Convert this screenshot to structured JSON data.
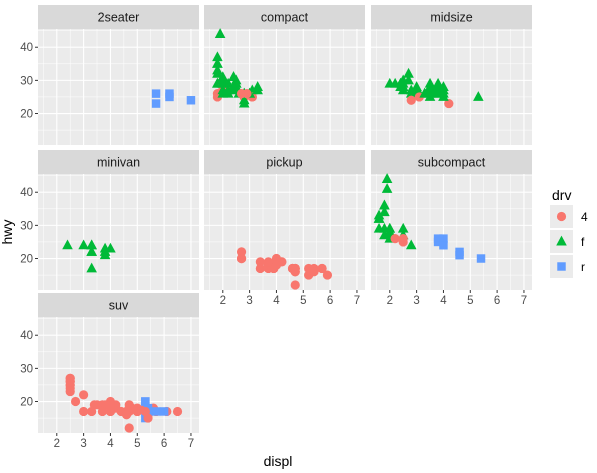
{
  "chart_data": {
    "type": "scatter",
    "facet_var": "class",
    "facets": [
      "2seater",
      "compact",
      "midsize",
      "minivan",
      "pickup",
      "subcompact",
      "suv"
    ],
    "xlabel": "displ",
    "ylabel": "hwy",
    "xlim": [
      1.3,
      7.3
    ],
    "ylim": [
      10.5,
      45.5
    ],
    "x_ticks": [
      2,
      3,
      4,
      5,
      6,
      7
    ],
    "y_ticks": [
      20,
      30,
      40
    ],
    "grid": true,
    "legend": {
      "title": "drv",
      "position": "right",
      "entries": [
        {
          "key": "4",
          "label": "4",
          "shape": "circle",
          "color": "#F8766D"
        },
        {
          "key": "f",
          "label": "f",
          "shape": "triangle",
          "color": "#00BA38"
        },
        {
          "key": "r",
          "label": "r",
          "shape": "square",
          "color": "#619CFF"
        }
      ]
    },
    "points": {
      "2seater": [
        {
          "x": 5.7,
          "y": 26,
          "drv": "r"
        },
        {
          "x": 5.7,
          "y": 23,
          "drv": "r"
        },
        {
          "x": 6.2,
          "y": 26,
          "drv": "r"
        },
        {
          "x": 6.2,
          "y": 25,
          "drv": "r"
        },
        {
          "x": 7.0,
          "y": 24,
          "drv": "r"
        }
      ],
      "compact": [
        {
          "x": 1.8,
          "y": 29,
          "drv": "f"
        },
        {
          "x": 1.8,
          "y": 29,
          "drv": "f"
        },
        {
          "x": 2.0,
          "y": 31,
          "drv": "f"
        },
        {
          "x": 2.0,
          "y": 30,
          "drv": "f"
        },
        {
          "x": 2.8,
          "y": 26,
          "drv": "f"
        },
        {
          "x": 2.8,
          "y": 26,
          "drv": "f"
        },
        {
          "x": 3.1,
          "y": 27,
          "drv": "f"
        },
        {
          "x": 1.8,
          "y": 26,
          "drv": "4"
        },
        {
          "x": 1.8,
          "y": 25,
          "drv": "4"
        },
        {
          "x": 2.0,
          "y": 28,
          "drv": "4"
        },
        {
          "x": 2.0,
          "y": 27,
          "drv": "4"
        },
        {
          "x": 2.8,
          "y": 25,
          "drv": "4"
        },
        {
          "x": 2.8,
          "y": 25,
          "drv": "4"
        },
        {
          "x": 3.1,
          "y": 25,
          "drv": "4"
        },
        {
          "x": 3.1,
          "y": 25,
          "drv": "4"
        },
        {
          "x": 2.2,
          "y": 26,
          "drv": "f"
        },
        {
          "x": 2.2,
          "y": 29,
          "drv": "f"
        },
        {
          "x": 2.4,
          "y": 27,
          "drv": "f"
        },
        {
          "x": 2.4,
          "y": 31,
          "drv": "f"
        },
        {
          "x": 3.0,
          "y": 26,
          "drv": "f"
        },
        {
          "x": 3.0,
          "y": 26,
          "drv": "f"
        },
        {
          "x": 3.3,
          "y": 28,
          "drv": "f"
        },
        {
          "x": 1.8,
          "y": 33,
          "drv": "f"
        },
        {
          "x": 1.8,
          "y": 35,
          "drv": "f"
        },
        {
          "x": 1.8,
          "y": 37,
          "drv": "f"
        },
        {
          "x": 1.8,
          "y": 35,
          "drv": "f"
        },
        {
          "x": 1.9,
          "y": 44,
          "drv": "f"
        },
        {
          "x": 2.0,
          "y": 29,
          "drv": "f"
        },
        {
          "x": 2.0,
          "y": 26,
          "drv": "f"
        },
        {
          "x": 2.0,
          "y": 29,
          "drv": "f"
        },
        {
          "x": 2.0,
          "y": 29,
          "drv": "f"
        },
        {
          "x": 2.5,
          "y": 29,
          "drv": "f"
        },
        {
          "x": 2.5,
          "y": 30,
          "drv": "f"
        },
        {
          "x": 2.5,
          "y": 29,
          "drv": "f"
        },
        {
          "x": 2.8,
          "y": 23,
          "drv": "f"
        },
        {
          "x": 2.8,
          "y": 24,
          "drv": "f"
        },
        {
          "x": 2.0,
          "y": 30,
          "drv": "f"
        },
        {
          "x": 2.2,
          "y": 27,
          "drv": "f"
        },
        {
          "x": 2.4,
          "y": 31,
          "drv": "f"
        },
        {
          "x": 1.8,
          "y": 32,
          "drv": "f"
        },
        {
          "x": 2.5,
          "y": 28,
          "drv": "f"
        },
        {
          "x": 2.0,
          "y": 27,
          "drv": "f"
        },
        {
          "x": 2.4,
          "y": 28,
          "drv": "f"
        },
        {
          "x": 2.6,
          "y": 26,
          "drv": "f"
        },
        {
          "x": 3.3,
          "y": 27,
          "drv": "f"
        },
        {
          "x": 2.9,
          "y": 26,
          "drv": "4"
        },
        {
          "x": 2.7,
          "y": 26,
          "drv": "4"
        }
      ],
      "midsize": [
        {
          "x": 2.4,
          "y": 29,
          "drv": "f"
        },
        {
          "x": 2.4,
          "y": 29,
          "drv": "f"
        },
        {
          "x": 2.5,
          "y": 28,
          "drv": "f"
        },
        {
          "x": 2.5,
          "y": 29,
          "drv": "f"
        },
        {
          "x": 3.1,
          "y": 26,
          "drv": "f"
        },
        {
          "x": 3.1,
          "y": 26,
          "drv": "f"
        },
        {
          "x": 3.5,
          "y": 28,
          "drv": "f"
        },
        {
          "x": 3.5,
          "y": 26,
          "drv": "f"
        },
        {
          "x": 2.7,
          "y": 32,
          "drv": "f"
        },
        {
          "x": 2.7,
          "y": 30,
          "drv": "f"
        },
        {
          "x": 2.5,
          "y": 30,
          "drv": "f"
        },
        {
          "x": 2.8,
          "y": 26,
          "drv": "f"
        },
        {
          "x": 2.8,
          "y": 27,
          "drv": "f"
        },
        {
          "x": 3.0,
          "y": 26,
          "drv": "f"
        },
        {
          "x": 3.0,
          "y": 26,
          "drv": "f"
        },
        {
          "x": 3.5,
          "y": 29,
          "drv": "f"
        },
        {
          "x": 3.5,
          "y": 27,
          "drv": "f"
        },
        {
          "x": 3.3,
          "y": 26,
          "drv": "f"
        },
        {
          "x": 3.8,
          "y": 26,
          "drv": "f"
        },
        {
          "x": 3.8,
          "y": 29,
          "drv": "f"
        },
        {
          "x": 4.0,
          "y": 26,
          "drv": "f"
        },
        {
          "x": 4.0,
          "y": 28,
          "drv": "f"
        },
        {
          "x": 2.2,
          "y": 29,
          "drv": "f"
        },
        {
          "x": 2.4,
          "y": 28,
          "drv": "f"
        },
        {
          "x": 3.6,
          "y": 27,
          "drv": "f"
        },
        {
          "x": 3.6,
          "y": 26,
          "drv": "f"
        },
        {
          "x": 2.0,
          "y": 29,
          "drv": "f"
        },
        {
          "x": 2.8,
          "y": 24,
          "drv": "4"
        },
        {
          "x": 3.1,
          "y": 25,
          "drv": "4"
        },
        {
          "x": 4.2,
          "y": 23,
          "drv": "4"
        },
        {
          "x": 2.5,
          "y": 27,
          "drv": "f"
        },
        {
          "x": 3.0,
          "y": 28,
          "drv": "f"
        },
        {
          "x": 3.3,
          "y": 26,
          "drv": "f"
        },
        {
          "x": 3.7,
          "y": 27,
          "drv": "f"
        },
        {
          "x": 3.8,
          "y": 28,
          "drv": "f"
        },
        {
          "x": 4.0,
          "y": 27,
          "drv": "f"
        },
        {
          "x": 3.8,
          "y": 26,
          "drv": "f"
        },
        {
          "x": 4.0,
          "y": 25,
          "drv": "f"
        },
        {
          "x": 3.5,
          "y": 25,
          "drv": "f"
        },
        {
          "x": 5.3,
          "y": 25,
          "drv": "f"
        }
      ],
      "minivan": [
        {
          "x": 2.4,
          "y": 24,
          "drv": "f"
        },
        {
          "x": 3.0,
          "y": 24,
          "drv": "f"
        },
        {
          "x": 3.3,
          "y": 22,
          "drv": "f"
        },
        {
          "x": 3.3,
          "y": 22,
          "drv": "f"
        },
        {
          "x": 3.3,
          "y": 24,
          "drv": "f"
        },
        {
          "x": 3.3,
          "y": 24,
          "drv": "f"
        },
        {
          "x": 3.3,
          "y": 17,
          "drv": "f"
        },
        {
          "x": 3.8,
          "y": 22,
          "drv": "f"
        },
        {
          "x": 3.8,
          "y": 21,
          "drv": "f"
        },
        {
          "x": 3.8,
          "y": 23,
          "drv": "f"
        },
        {
          "x": 4.0,
          "y": 23,
          "drv": "f"
        }
      ],
      "pickup": [
        {
          "x": 2.7,
          "y": 20,
          "drv": "4"
        },
        {
          "x": 2.7,
          "y": 20,
          "drv": "4"
        },
        {
          "x": 2.7,
          "y": 22,
          "drv": "4"
        },
        {
          "x": 3.4,
          "y": 17,
          "drv": "4"
        },
        {
          "x": 3.4,
          "y": 19,
          "drv": "4"
        },
        {
          "x": 3.7,
          "y": 18,
          "drv": "4"
        },
        {
          "x": 3.7,
          "y": 17,
          "drv": "4"
        },
        {
          "x": 3.9,
          "y": 17,
          "drv": "4"
        },
        {
          "x": 3.9,
          "y": 17,
          "drv": "4"
        },
        {
          "x": 4.7,
          "y": 17,
          "drv": "4"
        },
        {
          "x": 4.7,
          "y": 16,
          "drv": "4"
        },
        {
          "x": 4.7,
          "y": 12,
          "drv": "4"
        },
        {
          "x": 5.2,
          "y": 15,
          "drv": "4"
        },
        {
          "x": 5.2,
          "y": 17,
          "drv": "4"
        },
        {
          "x": 5.7,
          "y": 17,
          "drv": "4"
        },
        {
          "x": 5.9,
          "y": 15,
          "drv": "4"
        },
        {
          "x": 4.2,
          "y": 19,
          "drv": "4"
        },
        {
          "x": 4.2,
          "y": 19,
          "drv": "4"
        },
        {
          "x": 4.6,
          "y": 17,
          "drv": "4"
        },
        {
          "x": 4.6,
          "y": 17,
          "drv": "4"
        },
        {
          "x": 4.6,
          "y": 17,
          "drv": "4"
        },
        {
          "x": 5.4,
          "y": 17,
          "drv": "4"
        },
        {
          "x": 5.4,
          "y": 16,
          "drv": "4"
        },
        {
          "x": 2.7,
          "y": 20,
          "drv": "4"
        },
        {
          "x": 4.0,
          "y": 20,
          "drv": "4"
        },
        {
          "x": 4.0,
          "y": 19,
          "drv": "4"
        },
        {
          "x": 4.0,
          "y": 18,
          "drv": "4"
        },
        {
          "x": 4.7,
          "y": 17,
          "drv": "4"
        },
        {
          "x": 4.7,
          "y": 16,
          "drv": "4"
        },
        {
          "x": 5.7,
          "y": 17,
          "drv": "4"
        },
        {
          "x": 3.7,
          "y": 19,
          "drv": "4"
        },
        {
          "x": 4.7,
          "y": 17,
          "drv": "4"
        },
        {
          "x": 5.3,
          "y": 16,
          "drv": "4"
        }
      ],
      "subcompact": [
        {
          "x": 1.6,
          "y": 33,
          "drv": "f"
        },
        {
          "x": 1.6,
          "y": 32,
          "drv": "f"
        },
        {
          "x": 1.6,
          "y": 32,
          "drv": "f"
        },
        {
          "x": 1.6,
          "y": 29,
          "drv": "f"
        },
        {
          "x": 1.6,
          "y": 32,
          "drv": "f"
        },
        {
          "x": 1.8,
          "y": 34,
          "drv": "f"
        },
        {
          "x": 1.8,
          "y": 36,
          "drv": "f"
        },
        {
          "x": 1.8,
          "y": 36,
          "drv": "f"
        },
        {
          "x": 2.0,
          "y": 29,
          "drv": "f"
        },
        {
          "x": 1.9,
          "y": 44,
          "drv": "f"
        },
        {
          "x": 1.9,
          "y": 41,
          "drv": "f"
        },
        {
          "x": 2.0,
          "y": 26,
          "drv": "f"
        },
        {
          "x": 2.0,
          "y": 28,
          "drv": "f"
        },
        {
          "x": 2.0,
          "y": 29,
          "drv": "f"
        },
        {
          "x": 2.5,
          "y": 27,
          "drv": "f"
        },
        {
          "x": 2.5,
          "y": 29,
          "drv": "f"
        },
        {
          "x": 2.8,
          "y": 24,
          "drv": "f"
        },
        {
          "x": 1.8,
          "y": 29,
          "drv": "f"
        },
        {
          "x": 1.8,
          "y": 27,
          "drv": "f"
        },
        {
          "x": 2.2,
          "y": 26,
          "drv": "4"
        },
        {
          "x": 2.5,
          "y": 26,
          "drv": "4"
        },
        {
          "x": 2.5,
          "y": 25,
          "drv": "4"
        },
        {
          "x": 3.8,
          "y": 26,
          "drv": "r"
        },
        {
          "x": 3.8,
          "y": 25,
          "drv": "r"
        },
        {
          "x": 4.0,
          "y": 26,
          "drv": "r"
        },
        {
          "x": 4.0,
          "y": 24,
          "drv": "r"
        },
        {
          "x": 4.6,
          "y": 21,
          "drv": "r"
        },
        {
          "x": 4.6,
          "y": 22,
          "drv": "r"
        },
        {
          "x": 5.4,
          "y": 20,
          "drv": "r"
        }
      ],
      "suv": [
        {
          "x": 2.5,
          "y": 25,
          "drv": "4"
        },
        {
          "x": 2.5,
          "y": 24,
          "drv": "4"
        },
        {
          "x": 2.5,
          "y": 27,
          "drv": "4"
        },
        {
          "x": 2.5,
          "y": 25,
          "drv": "4"
        },
        {
          "x": 2.5,
          "y": 26,
          "drv": "4"
        },
        {
          "x": 2.5,
          "y": 23,
          "drv": "4"
        },
        {
          "x": 2.5,
          "y": 26,
          "drv": "4"
        },
        {
          "x": 2.7,
          "y": 20,
          "drv": "4"
        },
        {
          "x": 3.0,
          "y": 22,
          "drv": "4"
        },
        {
          "x": 3.3,
          "y": 17,
          "drv": "4"
        },
        {
          "x": 3.4,
          "y": 19,
          "drv": "4"
        },
        {
          "x": 3.5,
          "y": 19,
          "drv": "4"
        },
        {
          "x": 3.7,
          "y": 19,
          "drv": "4"
        },
        {
          "x": 4.0,
          "y": 17,
          "drv": "4"
        },
        {
          "x": 4.0,
          "y": 20,
          "drv": "4"
        },
        {
          "x": 4.0,
          "y": 17,
          "drv": "4"
        },
        {
          "x": 4.2,
          "y": 18,
          "drv": "4"
        },
        {
          "x": 4.4,
          "y": 17,
          "drv": "4"
        },
        {
          "x": 4.6,
          "y": 17,
          "drv": "4"
        },
        {
          "x": 4.7,
          "y": 19,
          "drv": "4"
        },
        {
          "x": 4.7,
          "y": 12,
          "drv": "4"
        },
        {
          "x": 4.7,
          "y": 17,
          "drv": "4"
        },
        {
          "x": 5.0,
          "y": 17,
          "drv": "4"
        },
        {
          "x": 5.3,
          "y": 18,
          "drv": "4"
        },
        {
          "x": 5.4,
          "y": 16,
          "drv": "4"
        },
        {
          "x": 5.7,
          "y": 17,
          "drv": "4"
        },
        {
          "x": 6.1,
          "y": 17,
          "drv": "4"
        },
        {
          "x": 6.5,
          "y": 17,
          "drv": "4"
        },
        {
          "x": 4.2,
          "y": 19,
          "drv": "4"
        },
        {
          "x": 4.6,
          "y": 17,
          "drv": "4"
        },
        {
          "x": 3.0,
          "y": 17,
          "drv": "4"
        },
        {
          "x": 3.8,
          "y": 19,
          "drv": "4"
        },
        {
          "x": 4.0,
          "y": 18,
          "drv": "4"
        },
        {
          "x": 4.8,
          "y": 18,
          "drv": "4"
        },
        {
          "x": 5.6,
          "y": 18,
          "drv": "4"
        },
        {
          "x": 5.0,
          "y": 18,
          "drv": "4"
        },
        {
          "x": 3.7,
          "y": 17,
          "drv": "4"
        },
        {
          "x": 4.0,
          "y": 19,
          "drv": "4"
        },
        {
          "x": 4.7,
          "y": 18,
          "drv": "4"
        },
        {
          "x": 2.5,
          "y": 27,
          "drv": "4"
        },
        {
          "x": 5.0,
          "y": 17,
          "drv": "4"
        },
        {
          "x": 5.3,
          "y": 20,
          "drv": "r"
        },
        {
          "x": 5.3,
          "y": 15,
          "drv": "r"
        },
        {
          "x": 5.3,
          "y": 20,
          "drv": "r"
        },
        {
          "x": 5.7,
          "y": 17,
          "drv": "r"
        },
        {
          "x": 6.0,
          "y": 17,
          "drv": "r"
        },
        {
          "x": 5.4,
          "y": 18,
          "drv": "r"
        },
        {
          "x": 5.4,
          "y": 17,
          "drv": "r"
        },
        {
          "x": 5.4,
          "y": 15,
          "drv": "4"
        },
        {
          "x": 5.3,
          "y": 17,
          "drv": "4"
        },
        {
          "x": 4.6,
          "y": 16,
          "drv": "4"
        }
      ]
    }
  }
}
